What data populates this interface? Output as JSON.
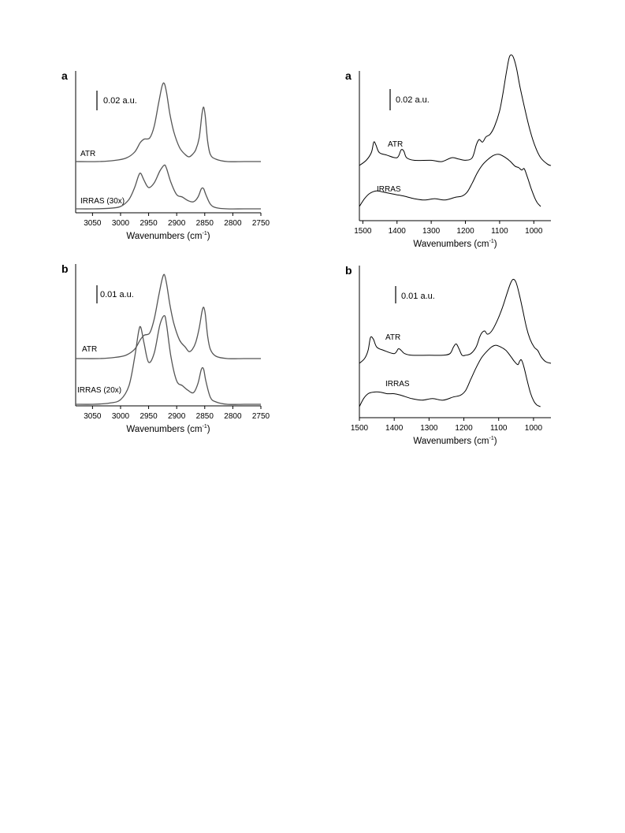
{
  "chart_data": [
    {
      "type": "line",
      "panel": "a",
      "scale_bar": "0.02 a.u.",
      "xlabel": "Wavenumbers (cm",
      "xlabel_sup": "-1",
      "xlabel_tail": ")",
      "xlim": [
        3080,
        2750
      ],
      "xticks": [
        3050,
        3000,
        2950,
        2900,
        2850,
        2800,
        2750
      ],
      "series": [
        {
          "name": "ATR",
          "x": [
            3080,
            3040,
            3010,
            2990,
            2975,
            2965,
            2958,
            2948,
            2940,
            2932,
            2926,
            2922,
            2918,
            2912,
            2905,
            2895,
            2885,
            2878,
            2872,
            2866,
            2860,
            2855,
            2852,
            2849,
            2845,
            2840,
            2830,
            2810,
            2780,
            2750
          ],
          "y": [
            0.0,
            0.0,
            0.001,
            0.003,
            0.008,
            0.016,
            0.019,
            0.02,
            0.03,
            0.05,
            0.064,
            0.066,
            0.058,
            0.04,
            0.025,
            0.012,
            0.006,
            0.004,
            0.006,
            0.01,
            0.02,
            0.04,
            0.046,
            0.038,
            0.018,
            0.006,
            0.002,
            0.0,
            0.0,
            0.0
          ]
        },
        {
          "name": "IRRAS (30x)",
          "x": [
            3080,
            3050,
            3020,
            3000,
            2985,
            2975,
            2968,
            2964,
            2958,
            2950,
            2940,
            2930,
            2922,
            2918,
            2910,
            2900,
            2890,
            2880,
            2870,
            2862,
            2856,
            2852,
            2848,
            2840,
            2830,
            2810,
            2780,
            2750
          ],
          "y": [
            0.0,
            0.0,
            0.0005,
            0.002,
            0.008,
            0.018,
            0.028,
            0.03,
            0.024,
            0.018,
            0.022,
            0.032,
            0.037,
            0.034,
            0.022,
            0.012,
            0.01,
            0.007,
            0.006,
            0.01,
            0.017,
            0.017,
            0.012,
            0.004,
            0.001,
            0.0,
            0.0,
            0.0
          ]
        }
      ]
    },
    {
      "type": "line",
      "panel": "a",
      "scale_bar": "0.02 a.u.",
      "xlabel": "Wavenumbers (cm",
      "xlabel_sup": "-1",
      "xlabel_tail": ")",
      "xlim": [
        1510,
        950
      ],
      "xticks": [
        1500,
        1400,
        1300,
        1200,
        1100,
        1000
      ],
      "series": [
        {
          "name": "ATR",
          "x": [
            1510,
            1490,
            1475,
            1468,
            1462,
            1452,
            1430,
            1400,
            1388,
            1380,
            1372,
            1350,
            1300,
            1270,
            1240,
            1220,
            1200,
            1180,
            1168,
            1160,
            1150,
            1140,
            1128,
            1115,
            1100,
            1090,
            1080,
            1072,
            1065,
            1058,
            1050,
            1040,
            1025,
            1010,
            995,
            980,
            960,
            950
          ],
          "y": [
            0.0,
            0.004,
            0.01,
            0.018,
            0.016,
            0.01,
            0.008,
            0.006,
            0.012,
            0.011,
            0.006,
            0.004,
            0.004,
            0.003,
            0.006,
            0.005,
            0.004,
            0.006,
            0.016,
            0.02,
            0.018,
            0.022,
            0.024,
            0.03,
            0.042,
            0.056,
            0.072,
            0.083,
            0.085,
            0.082,
            0.074,
            0.06,
            0.042,
            0.026,
            0.014,
            0.006,
            0.001,
            0.0
          ]
        },
        {
          "name": "IRRAS",
          "x": [
            1510,
            1495,
            1480,
            1460,
            1440,
            1420,
            1400,
            1380,
            1350,
            1320,
            1290,
            1260,
            1230,
            1210,
            1195,
            1180,
            1165,
            1150,
            1135,
            1120,
            1110,
            1100,
            1085,
            1070,
            1055,
            1045,
            1035,
            1028,
            1018,
            1008,
            998,
            990,
            980
          ],
          "y": [
            0.0,
            0.006,
            0.01,
            0.012,
            0.011,
            0.01,
            0.009,
            0.008,
            0.006,
            0.005,
            0.006,
            0.005,
            0.007,
            0.008,
            0.011,
            0.018,
            0.026,
            0.032,
            0.036,
            0.039,
            0.04,
            0.04,
            0.038,
            0.035,
            0.031,
            0.03,
            0.028,
            0.029,
            0.022,
            0.014,
            0.007,
            0.003,
            0.0
          ]
        }
      ]
    },
    {
      "type": "line",
      "panel": "b",
      "scale_bar": "0.01 a.u.",
      "xlabel": "Wavenumbers (cm",
      "xlabel_sup": "-1",
      "xlabel_tail": ")",
      "xlim": [
        3080,
        2750
      ],
      "xticks": [
        3050,
        3000,
        2950,
        2900,
        2850,
        2800,
        2750
      ],
      "series": [
        {
          "name": "ATR",
          "x": [
            3080,
            3040,
            3010,
            2990,
            2975,
            2965,
            2958,
            2948,
            2940,
            2932,
            2926,
            2922,
            2918,
            2912,
            2905,
            2895,
            2885,
            2878,
            2872,
            2866,
            2860,
            2855,
            2852,
            2849,
            2845,
            2840,
            2830,
            2810,
            2780,
            2750
          ],
          "y": [
            0.0,
            0.0,
            0.0005,
            0.0015,
            0.004,
            0.008,
            0.01,
            0.011,
            0.017,
            0.027,
            0.034,
            0.036,
            0.032,
            0.023,
            0.015,
            0.008,
            0.005,
            0.003,
            0.004,
            0.007,
            0.013,
            0.02,
            0.022,
            0.019,
            0.01,
            0.004,
            0.001,
            0.0,
            0.0,
            0.0
          ]
        },
        {
          "name": "IRRAS (20x)",
          "x": [
            3080,
            3050,
            3020,
            3000,
            2985,
            2975,
            2968,
            2964,
            2958,
            2950,
            2940,
            2930,
            2922,
            2918,
            2910,
            2900,
            2890,
            2880,
            2870,
            2862,
            2856,
            2852,
            2848,
            2840,
            2830,
            2810,
            2780,
            2750
          ],
          "y": [
            0.0,
            0.0,
            0.0005,
            0.002,
            0.008,
            0.02,
            0.031,
            0.033,
            0.026,
            0.018,
            0.022,
            0.034,
            0.038,
            0.034,
            0.02,
            0.01,
            0.008,
            0.006,
            0.005,
            0.009,
            0.015,
            0.015,
            0.01,
            0.003,
            0.001,
            0.0,
            0.0,
            0.0
          ]
        }
      ]
    },
    {
      "type": "line",
      "panel": "b",
      "scale_bar": "0.01 a.u.",
      "xlabel": "Wavenumbers (cm",
      "xlabel_sup": "-1",
      "xlabel_tail": ")",
      "xlim": [
        1500,
        950
      ],
      "xticks": [
        1500,
        1400,
        1300,
        1200,
        1100,
        1000
      ],
      "series": [
        {
          "name": "ATR",
          "x": [
            1500,
            1485,
            1475,
            1468,
            1460,
            1450,
            1430,
            1400,
            1388,
            1380,
            1370,
            1350,
            1300,
            1260,
            1240,
            1230,
            1222,
            1214,
            1205,
            1195,
            1180,
            1165,
            1155,
            1148,
            1140,
            1132,
            1120,
            1105,
            1090,
            1075,
            1065,
            1058,
            1050,
            1040,
            1030,
            1020,
            1010,
            998,
            988,
            978,
            965,
            950
          ],
          "y": [
            0.0,
            0.003,
            0.008,
            0.016,
            0.015,
            0.01,
            0.008,
            0.006,
            0.009,
            0.008,
            0.006,
            0.005,
            0.005,
            0.005,
            0.006,
            0.01,
            0.012,
            0.009,
            0.005,
            0.005,
            0.006,
            0.01,
            0.016,
            0.019,
            0.02,
            0.018,
            0.02,
            0.026,
            0.034,
            0.044,
            0.05,
            0.052,
            0.05,
            0.042,
            0.032,
            0.022,
            0.015,
            0.01,
            0.008,
            0.004,
            0.001,
            0.0
          ]
        },
        {
          "name": "IRRAS",
          "x": [
            1500,
            1488,
            1475,
            1460,
            1440,
            1420,
            1400,
            1380,
            1350,
            1320,
            1290,
            1260,
            1230,
            1210,
            1195,
            1180,
            1165,
            1150,
            1135,
            1120,
            1108,
            1095,
            1080,
            1065,
            1055,
            1045,
            1040,
            1035,
            1028,
            1018,
            1008,
            998,
            990,
            980
          ],
          "y": [
            0.0,
            0.005,
            0.008,
            0.009,
            0.009,
            0.008,
            0.008,
            0.007,
            0.005,
            0.004,
            0.005,
            0.004,
            0.006,
            0.007,
            0.01,
            0.017,
            0.024,
            0.03,
            0.034,
            0.037,
            0.038,
            0.037,
            0.035,
            0.031,
            0.028,
            0.026,
            0.028,
            0.029,
            0.025,
            0.016,
            0.008,
            0.003,
            0.001,
            0.0
          ]
        }
      ]
    }
  ]
}
